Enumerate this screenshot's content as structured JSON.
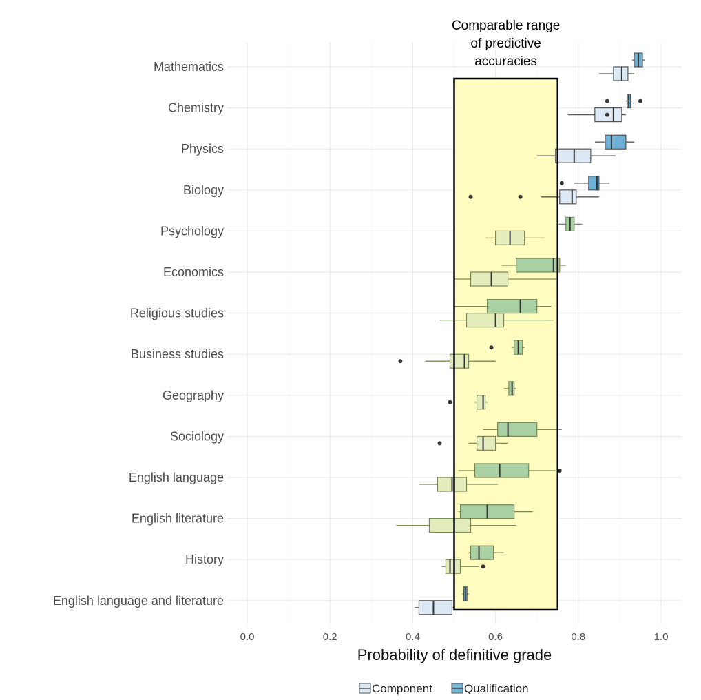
{
  "chart_data": {
    "type": "boxplot",
    "orientation": "horizontal",
    "xlabel": "Probability of definitive grade",
    "ylabel": "",
    "xlim": [
      -0.05,
      1.05
    ],
    "x_ticks": [
      {
        "value": 0.0,
        "label": "0.0"
      },
      {
        "value": 0.2,
        "label": "0.2"
      },
      {
        "value": 0.4,
        "label": "0.4"
      },
      {
        "value": 0.6,
        "label": "0.6"
      },
      {
        "value": 0.8,
        "label": "0.8"
      },
      {
        "value": 1.0,
        "label": "1.0"
      }
    ],
    "grid": true,
    "legend_position": "bottom",
    "legend": [
      {
        "name": "Component",
        "swatch": "#dce9f5"
      },
      {
        "name": "Qualification",
        "swatch": "#74b4d4"
      }
    ],
    "annotation": {
      "lines": [
        "Comparable range",
        "of predictive",
        "accuracies"
      ],
      "x_range": [
        0.5,
        0.75
      ],
      "fill": "#fffcc0"
    },
    "colors": {
      "component_blue": "#dde9f5",
      "qualification_blue": "#6fb0d6",
      "component_green": "#e4ecbc",
      "qualification_green": "#a8d0a3",
      "whisker_blue": "#555555",
      "whisker_green": "#7a8a55"
    },
    "categories": [
      "Mathematics",
      "Chemistry",
      "Physics",
      "Biology",
      "Psychology",
      "Economics",
      "Religious studies",
      "Business studies",
      "Geography",
      "Sociology",
      "English language",
      "English literature",
      "History",
      "English language and literature"
    ],
    "series": [
      {
        "name": "Component",
        "boxes": [
          {
            "category": "Mathematics",
            "min": 0.85,
            "q1": 0.885,
            "median": 0.905,
            "q3": 0.92,
            "max": 0.935,
            "outliers": []
          },
          {
            "category": "Chemistry",
            "min": 0.775,
            "q1": 0.84,
            "median": 0.885,
            "q3": 0.905,
            "max": 0.915,
            "outliers": [
              0.87
            ]
          },
          {
            "category": "Physics",
            "min": 0.7,
            "q1": 0.745,
            "median": 0.79,
            "q3": 0.83,
            "max": 0.89,
            "outliers": []
          },
          {
            "category": "Biology",
            "min": 0.71,
            "q1": 0.755,
            "median": 0.785,
            "q3": 0.795,
            "max": 0.85,
            "outliers": [
              0.54,
              0.66
            ]
          },
          {
            "category": "Psychology",
            "min": 0.575,
            "q1": 0.6,
            "median": 0.635,
            "q3": 0.67,
            "max": 0.72,
            "outliers": []
          },
          {
            "category": "Economics",
            "min": 0.5,
            "q1": 0.54,
            "median": 0.59,
            "q3": 0.63,
            "max": 0.75,
            "outliers": []
          },
          {
            "category": "Religious studies",
            "min": 0.465,
            "q1": 0.53,
            "median": 0.6,
            "q3": 0.62,
            "max": 0.74,
            "outliers": []
          },
          {
            "category": "Business studies",
            "min": 0.43,
            "q1": 0.49,
            "median": 0.525,
            "q3": 0.535,
            "max": 0.6,
            "outliers": [
              0.37
            ]
          },
          {
            "category": "Geography",
            "min": 0.55,
            "q1": 0.555,
            "median": 0.57,
            "q3": 0.575,
            "max": 0.58,
            "outliers": [
              0.49
            ]
          },
          {
            "category": "Sociology",
            "min": 0.535,
            "q1": 0.555,
            "median": 0.57,
            "q3": 0.6,
            "max": 0.63,
            "outliers": [
              0.465
            ]
          },
          {
            "category": "English language",
            "min": 0.415,
            "q1": 0.46,
            "median": 0.495,
            "q3": 0.53,
            "max": 0.605,
            "outliers": []
          },
          {
            "category": "English literature",
            "min": 0.36,
            "q1": 0.44,
            "median": 0.5,
            "q3": 0.54,
            "max": 0.65,
            "outliers": []
          },
          {
            "category": "History",
            "min": 0.47,
            "q1": 0.48,
            "median": 0.49,
            "q3": 0.515,
            "max": 0.56,
            "outliers": [
              0.57
            ]
          },
          {
            "category": "English language and literature",
            "min": 0.405,
            "q1": 0.415,
            "median": 0.45,
            "q3": 0.495,
            "max": 0.5,
            "outliers": []
          }
        ]
      },
      {
        "name": "Qualification",
        "boxes": [
          {
            "category": "Mathematics",
            "min": 0.93,
            "q1": 0.935,
            "median": 0.945,
            "q3": 0.955,
            "max": 0.96,
            "outliers": []
          },
          {
            "category": "Chemistry",
            "min": 0.915,
            "q1": 0.918,
            "median": 0.922,
            "q3": 0.926,
            "max": 0.93,
            "outliers": [
              0.87,
              0.95
            ]
          },
          {
            "category": "Physics",
            "min": 0.84,
            "q1": 0.865,
            "median": 0.88,
            "q3": 0.915,
            "max": 0.935,
            "outliers": []
          },
          {
            "category": "Biology",
            "min": 0.79,
            "q1": 0.825,
            "median": 0.845,
            "q3": 0.85,
            "max": 0.875,
            "outliers": [
              0.76
            ]
          },
          {
            "category": "Psychology",
            "min": 0.75,
            "q1": 0.77,
            "median": 0.78,
            "q3": 0.79,
            "max": 0.81,
            "outliers": []
          },
          {
            "category": "Economics",
            "min": 0.615,
            "q1": 0.65,
            "median": 0.74,
            "q3": 0.755,
            "max": 0.77,
            "outliers": []
          },
          {
            "category": "Religious studies",
            "min": 0.5,
            "q1": 0.58,
            "median": 0.66,
            "q3": 0.7,
            "max": 0.735,
            "outliers": []
          },
          {
            "category": "Business studies",
            "min": 0.64,
            "q1": 0.645,
            "median": 0.655,
            "q3": 0.665,
            "max": 0.67,
            "outliers": [
              0.59
            ]
          },
          {
            "category": "Geography",
            "min": 0.62,
            "q1": 0.632,
            "median": 0.64,
            "q3": 0.645,
            "max": 0.65,
            "outliers": []
          },
          {
            "category": "Sociology",
            "min": 0.57,
            "q1": 0.605,
            "median": 0.63,
            "q3": 0.7,
            "max": 0.76,
            "outliers": []
          },
          {
            "category": "English language",
            "min": 0.51,
            "q1": 0.55,
            "median": 0.61,
            "q3": 0.68,
            "max": 0.745,
            "outliers": [
              0.755
            ]
          },
          {
            "category": "English literature",
            "min": 0.51,
            "q1": 0.515,
            "median": 0.58,
            "q3": 0.645,
            "max": 0.69,
            "outliers": []
          },
          {
            "category": "History",
            "min": 0.535,
            "q1": 0.54,
            "median": 0.56,
            "q3": 0.595,
            "max": 0.62,
            "outliers": []
          },
          {
            "category": "English language and literature",
            "min": 0.52,
            "q1": 0.523,
            "median": 0.527,
            "q3": 0.531,
            "max": 0.535,
            "outliers": []
          }
        ]
      }
    ]
  }
}
